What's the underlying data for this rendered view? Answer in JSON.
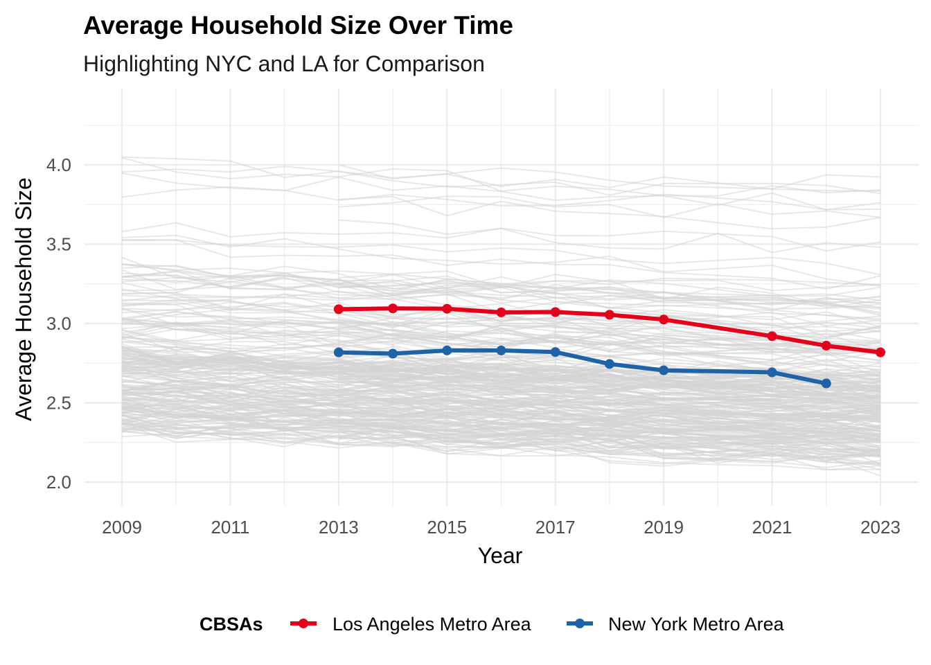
{
  "chart_data": {
    "type": "line",
    "title": "Average Household Size Over Time",
    "subtitle": "Highlighting NYC and LA for Comparison",
    "xlabel": "Year",
    "ylabel": "Average Household Size",
    "xlim": [
      2009,
      2023
    ],
    "ylim": [
      1.93,
      4.47
    ],
    "x_ticks": [
      2009,
      2011,
      2013,
      2015,
      2017,
      2019,
      2021,
      2023
    ],
    "y_ticks": [
      2.0,
      2.5,
      3.0,
      3.5,
      4.0
    ],
    "y_tick_labels": [
      "2.0",
      "2.5",
      "3.0",
      "3.5",
      "4.0"
    ],
    "grid": true,
    "legend": {
      "title": "CBSAs",
      "position": "bottom"
    },
    "background_series": {
      "color": "#d3d3d3",
      "count": 260,
      "description_range": [
        2.0,
        4.35
      ]
    },
    "series": [
      {
        "name": "Los Angeles Metro Area",
        "color": "#e3001b",
        "x": [
          2013,
          2014,
          2015,
          2016,
          2017,
          2018,
          2019,
          2021,
          2022,
          2023
        ],
        "values": [
          3.09,
          3.095,
          3.093,
          3.07,
          3.072,
          3.055,
          3.025,
          2.92,
          2.86,
          2.818
        ]
      },
      {
        "name": "New York Metro Area",
        "color": "#1f63a7",
        "x": [
          2013,
          2014,
          2015,
          2016,
          2017,
          2018,
          2019,
          2021,
          2022
        ],
        "values": [
          2.818,
          2.81,
          2.83,
          2.83,
          2.82,
          2.745,
          2.705,
          2.692,
          2.622
        ]
      }
    ]
  }
}
